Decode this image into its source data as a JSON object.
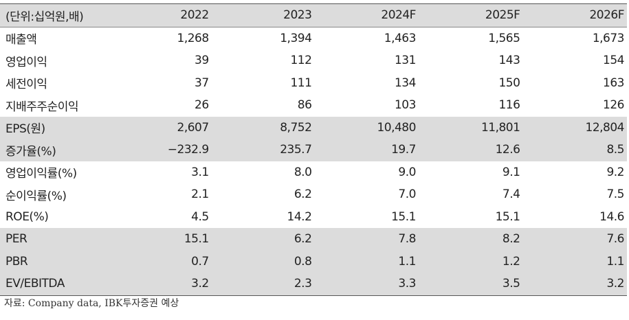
{
  "table": {
    "header": [
      "(단위:십억원,배)",
      "2022",
      "2023",
      "2024F",
      "2025F",
      "2026F"
    ],
    "rows": [
      [
        "매출액",
        "1,268",
        "1,394",
        "1,463",
        "1,565",
        "1,673"
      ],
      [
        "영업이익",
        "39",
        "112",
        "131",
        "143",
        "154"
      ],
      [
        "세전이익",
        "37",
        "111",
        "134",
        "150",
        "163"
      ],
      [
        "지배주주순이익",
        "26",
        "86",
        "103",
        "116",
        "126"
      ],
      [
        "EPS(원)",
        "2,607",
        "8,752",
        "10,480",
        "11,801",
        "12,804"
      ],
      [
        "증가율(%)",
        "−232.9",
        "235.7",
        "19.7",
        "12.6",
        "8.5"
      ],
      [
        "영업이익률(%)",
        "3.1",
        "8.0",
        "9.0",
        "9.1",
        "9.2"
      ],
      [
        "순이익률(%)",
        "2.1",
        "6.2",
        "7.0",
        "7.4",
        "7.5"
      ],
      [
        "ROE(%)",
        "4.5",
        "14.2",
        "15.1",
        "15.1",
        "14.6"
      ],
      [
        "PER",
        "15.1",
        "6.2",
        "7.8",
        "8.2",
        "7.6"
      ],
      [
        "PBR",
        "0.7",
        "0.8",
        "1.1",
        "1.2",
        "1.1"
      ],
      [
        "EV/EBITDA",
        "3.2",
        "2.3",
        "3.3",
        "3.5",
        "3.2"
      ]
    ]
  },
  "source": "자료: Company data, IBK투자증권 예상"
}
